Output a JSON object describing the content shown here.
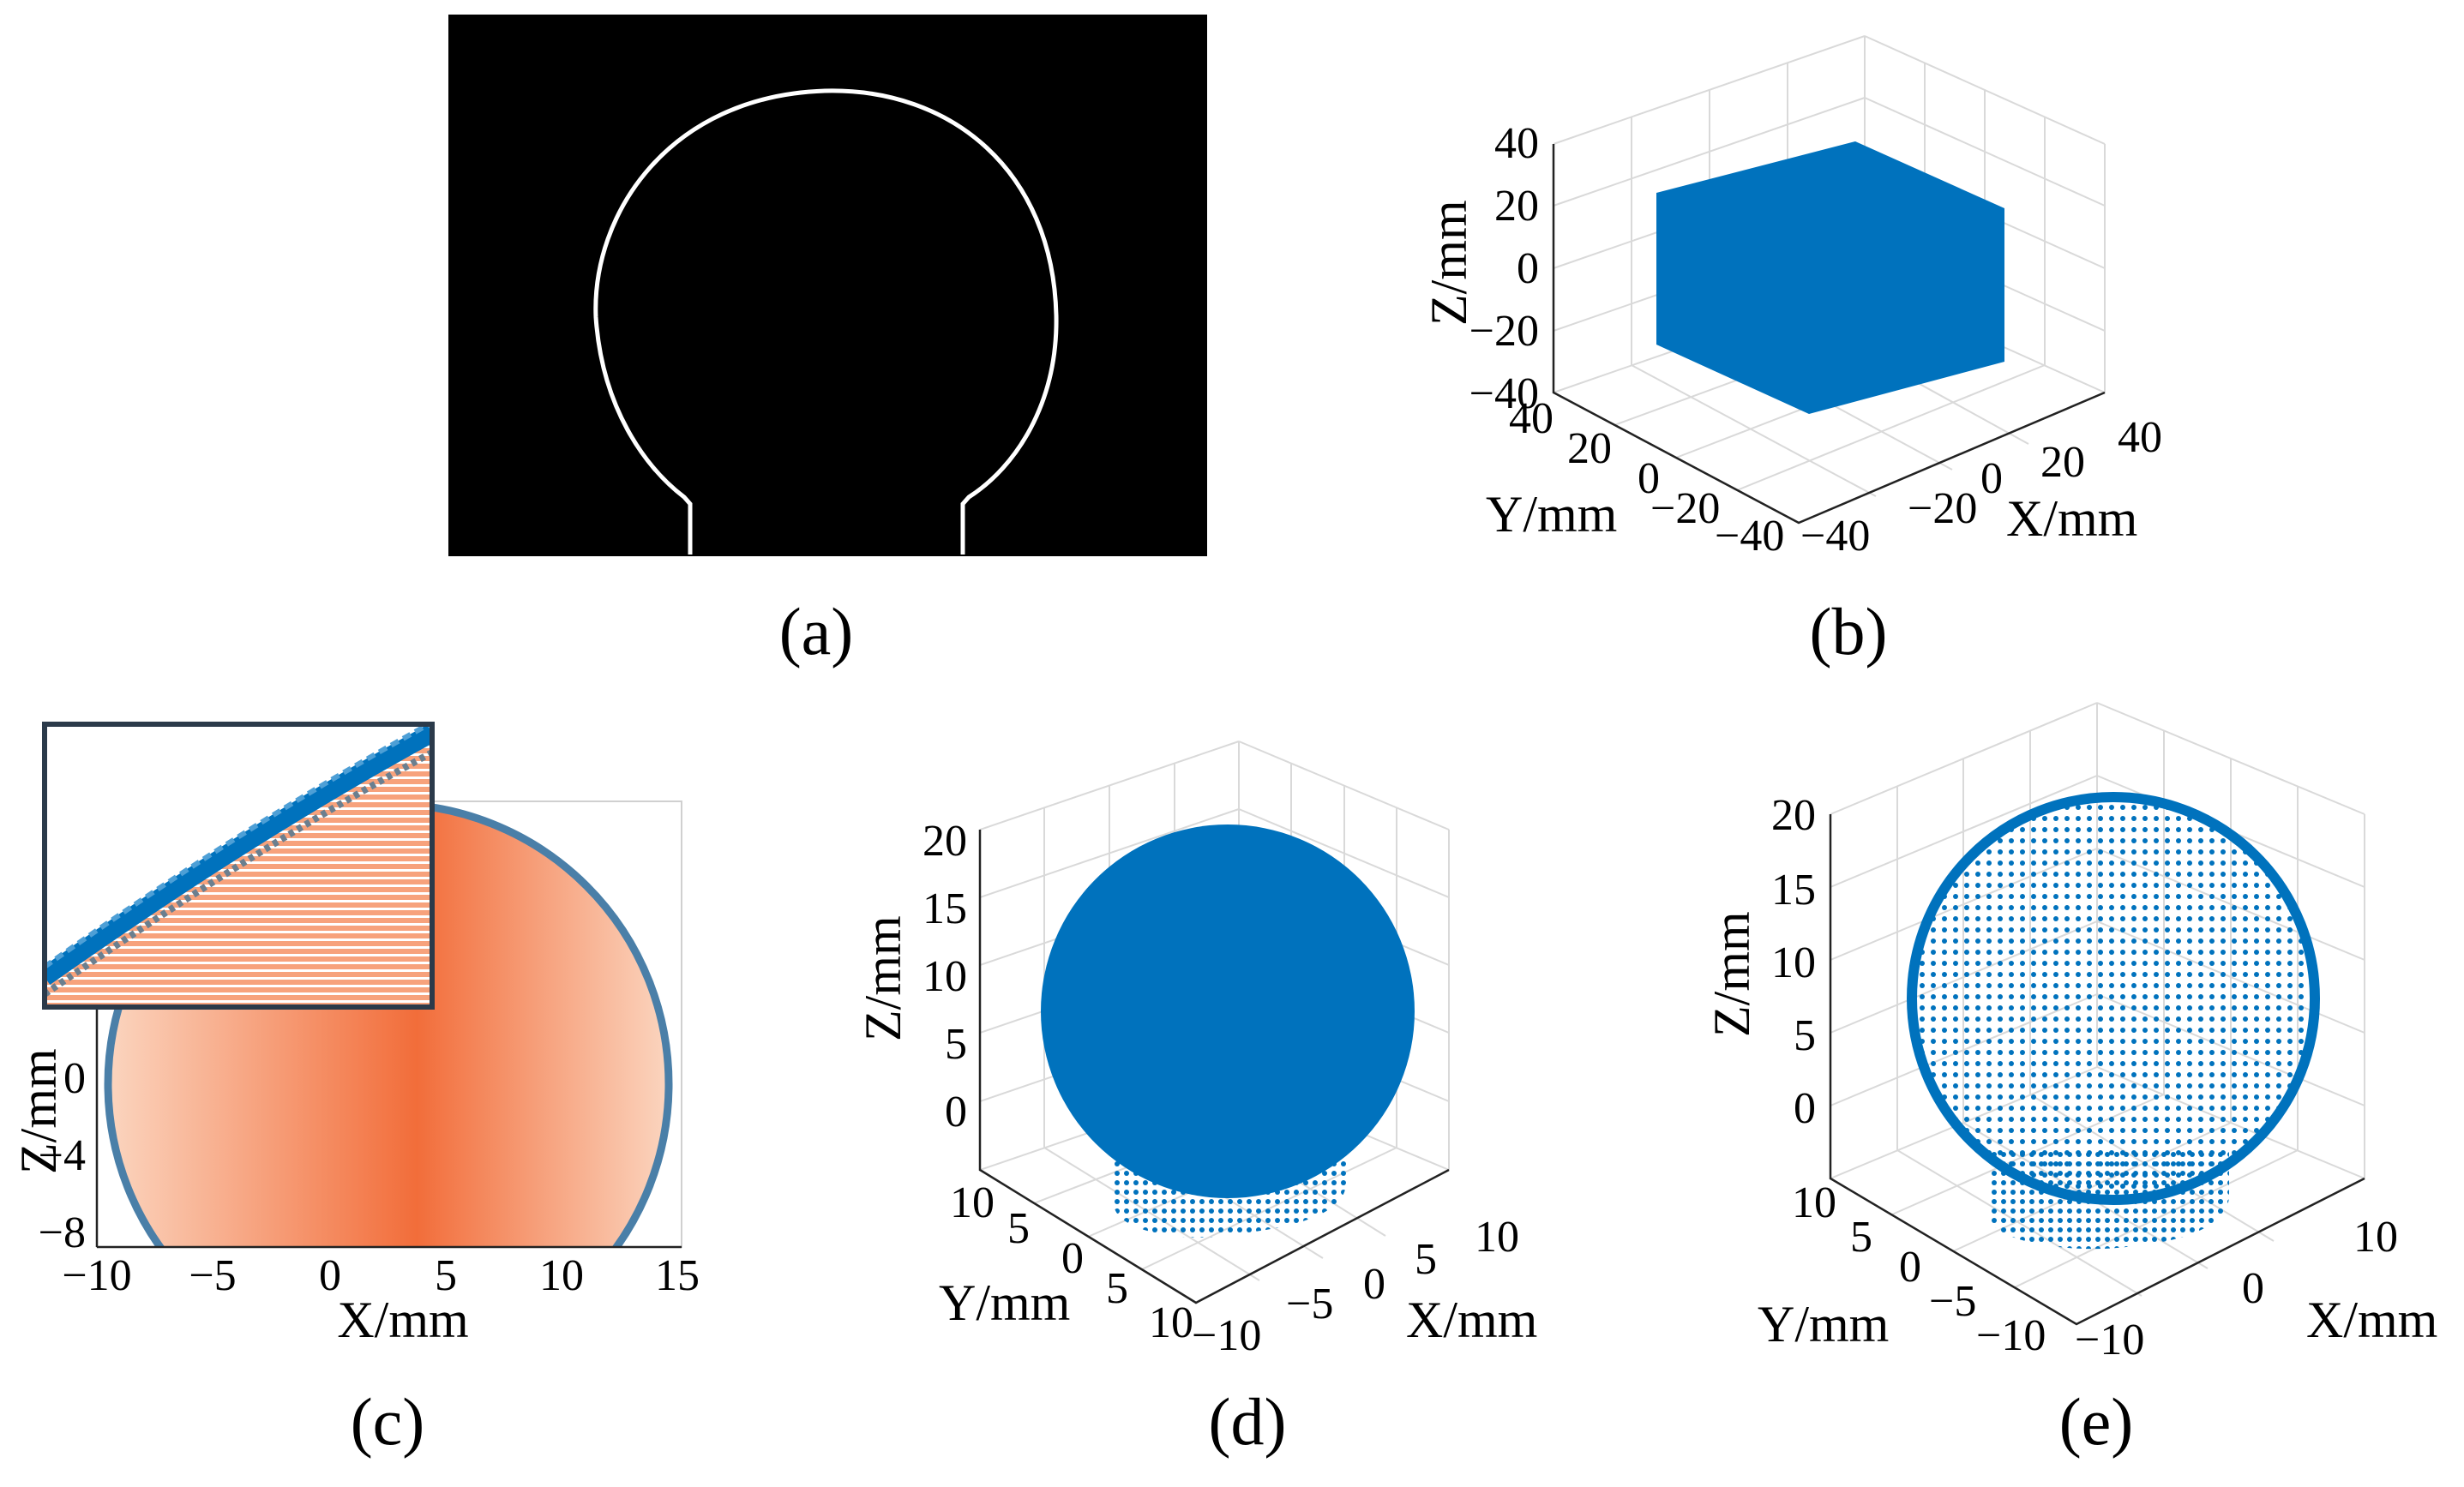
{
  "panels": {
    "a": {
      "caption": "(a)",
      "content": "edge-contour-image"
    },
    "b": {
      "caption": "(b)",
      "xlabel": "X/mm",
      "ylabel": "Y/mm",
      "zlabel": "Z/mm",
      "xticks": [
        "−40",
        "−20",
        "0",
        "20",
        "40"
      ],
      "yticks": [
        "40",
        "20",
        "0",
        "−20",
        "−40"
      ],
      "zticks": [
        "40",
        "20",
        "0",
        "−20",
        "−40"
      ]
    },
    "c": {
      "caption": "(c)",
      "xlabel": "X/mm",
      "ylabel": "Z/mm",
      "xticks": [
        "−10",
        "−5",
        "0",
        "5",
        "10",
        "15"
      ],
      "yticks": [
        "0",
        "−4",
        "−8"
      ]
    },
    "d": {
      "caption": "(d)",
      "xlabel": "X/mm",
      "ylabel": "Y/mm",
      "zlabel": "Z/mm",
      "xticks": [
        "−10",
        "−5",
        "0",
        "5",
        "10"
      ],
      "yticks": [
        "10",
        "5",
        "0",
        "5",
        "10"
      ],
      "zticks": [
        "20",
        "15",
        "10",
        "5",
        "0"
      ]
    },
    "e": {
      "caption": "(e)",
      "xlabel": "X/mm",
      "ylabel": "Y/mm",
      "zlabel": "Z/mm",
      "xticks": [
        "−10",
        "0",
        "10"
      ],
      "yticks": [
        "10",
        "5",
        "0",
        "−5",
        "−10"
      ],
      "zticks": [
        "20",
        "15",
        "10",
        "5",
        "0"
      ]
    }
  },
  "colors": {
    "point_blue": "#0072bd",
    "fill_orange": "#f26d3a",
    "fill_light": "#fbd5bf",
    "contour_white": "#ffffff",
    "background_black": "#000000"
  },
  "chart_data": [
    {
      "type": "image",
      "panel": "a",
      "description_source": "binary edge image of a sphere on a cylindrical stem"
    },
    {
      "type": "scatter",
      "panel": "b",
      "dimension": "3d",
      "xlim": [
        -40,
        40
      ],
      "ylim": [
        -40,
        40
      ],
      "zlim": [
        -40,
        40
      ],
      "shape": "cube",
      "cube_half_size": 30
    },
    {
      "type": "scatter",
      "panel": "c",
      "dimension": "2d",
      "xlim": [
        -10,
        15
      ],
      "ylim": [
        -8,
        20
      ],
      "shape": "circle-cross-section",
      "circle_center": [
        3,
        5.7
      ],
      "circle_radius": 13
    },
    {
      "type": "scatter",
      "panel": "d",
      "dimension": "3d",
      "xlim": [
        -10,
        10
      ],
      "ylim": [
        -10,
        10
      ],
      "zlim": [
        -5,
        20
      ],
      "shape": "sphere-with-stem",
      "fill": "dense"
    },
    {
      "type": "scatter",
      "panel": "e",
      "dimension": "3d",
      "xlim": [
        -10,
        10
      ],
      "ylim": [
        -10,
        10
      ],
      "zlim": [
        -5,
        20
      ],
      "shape": "sphere-with-stem",
      "fill": "surface"
    }
  ]
}
